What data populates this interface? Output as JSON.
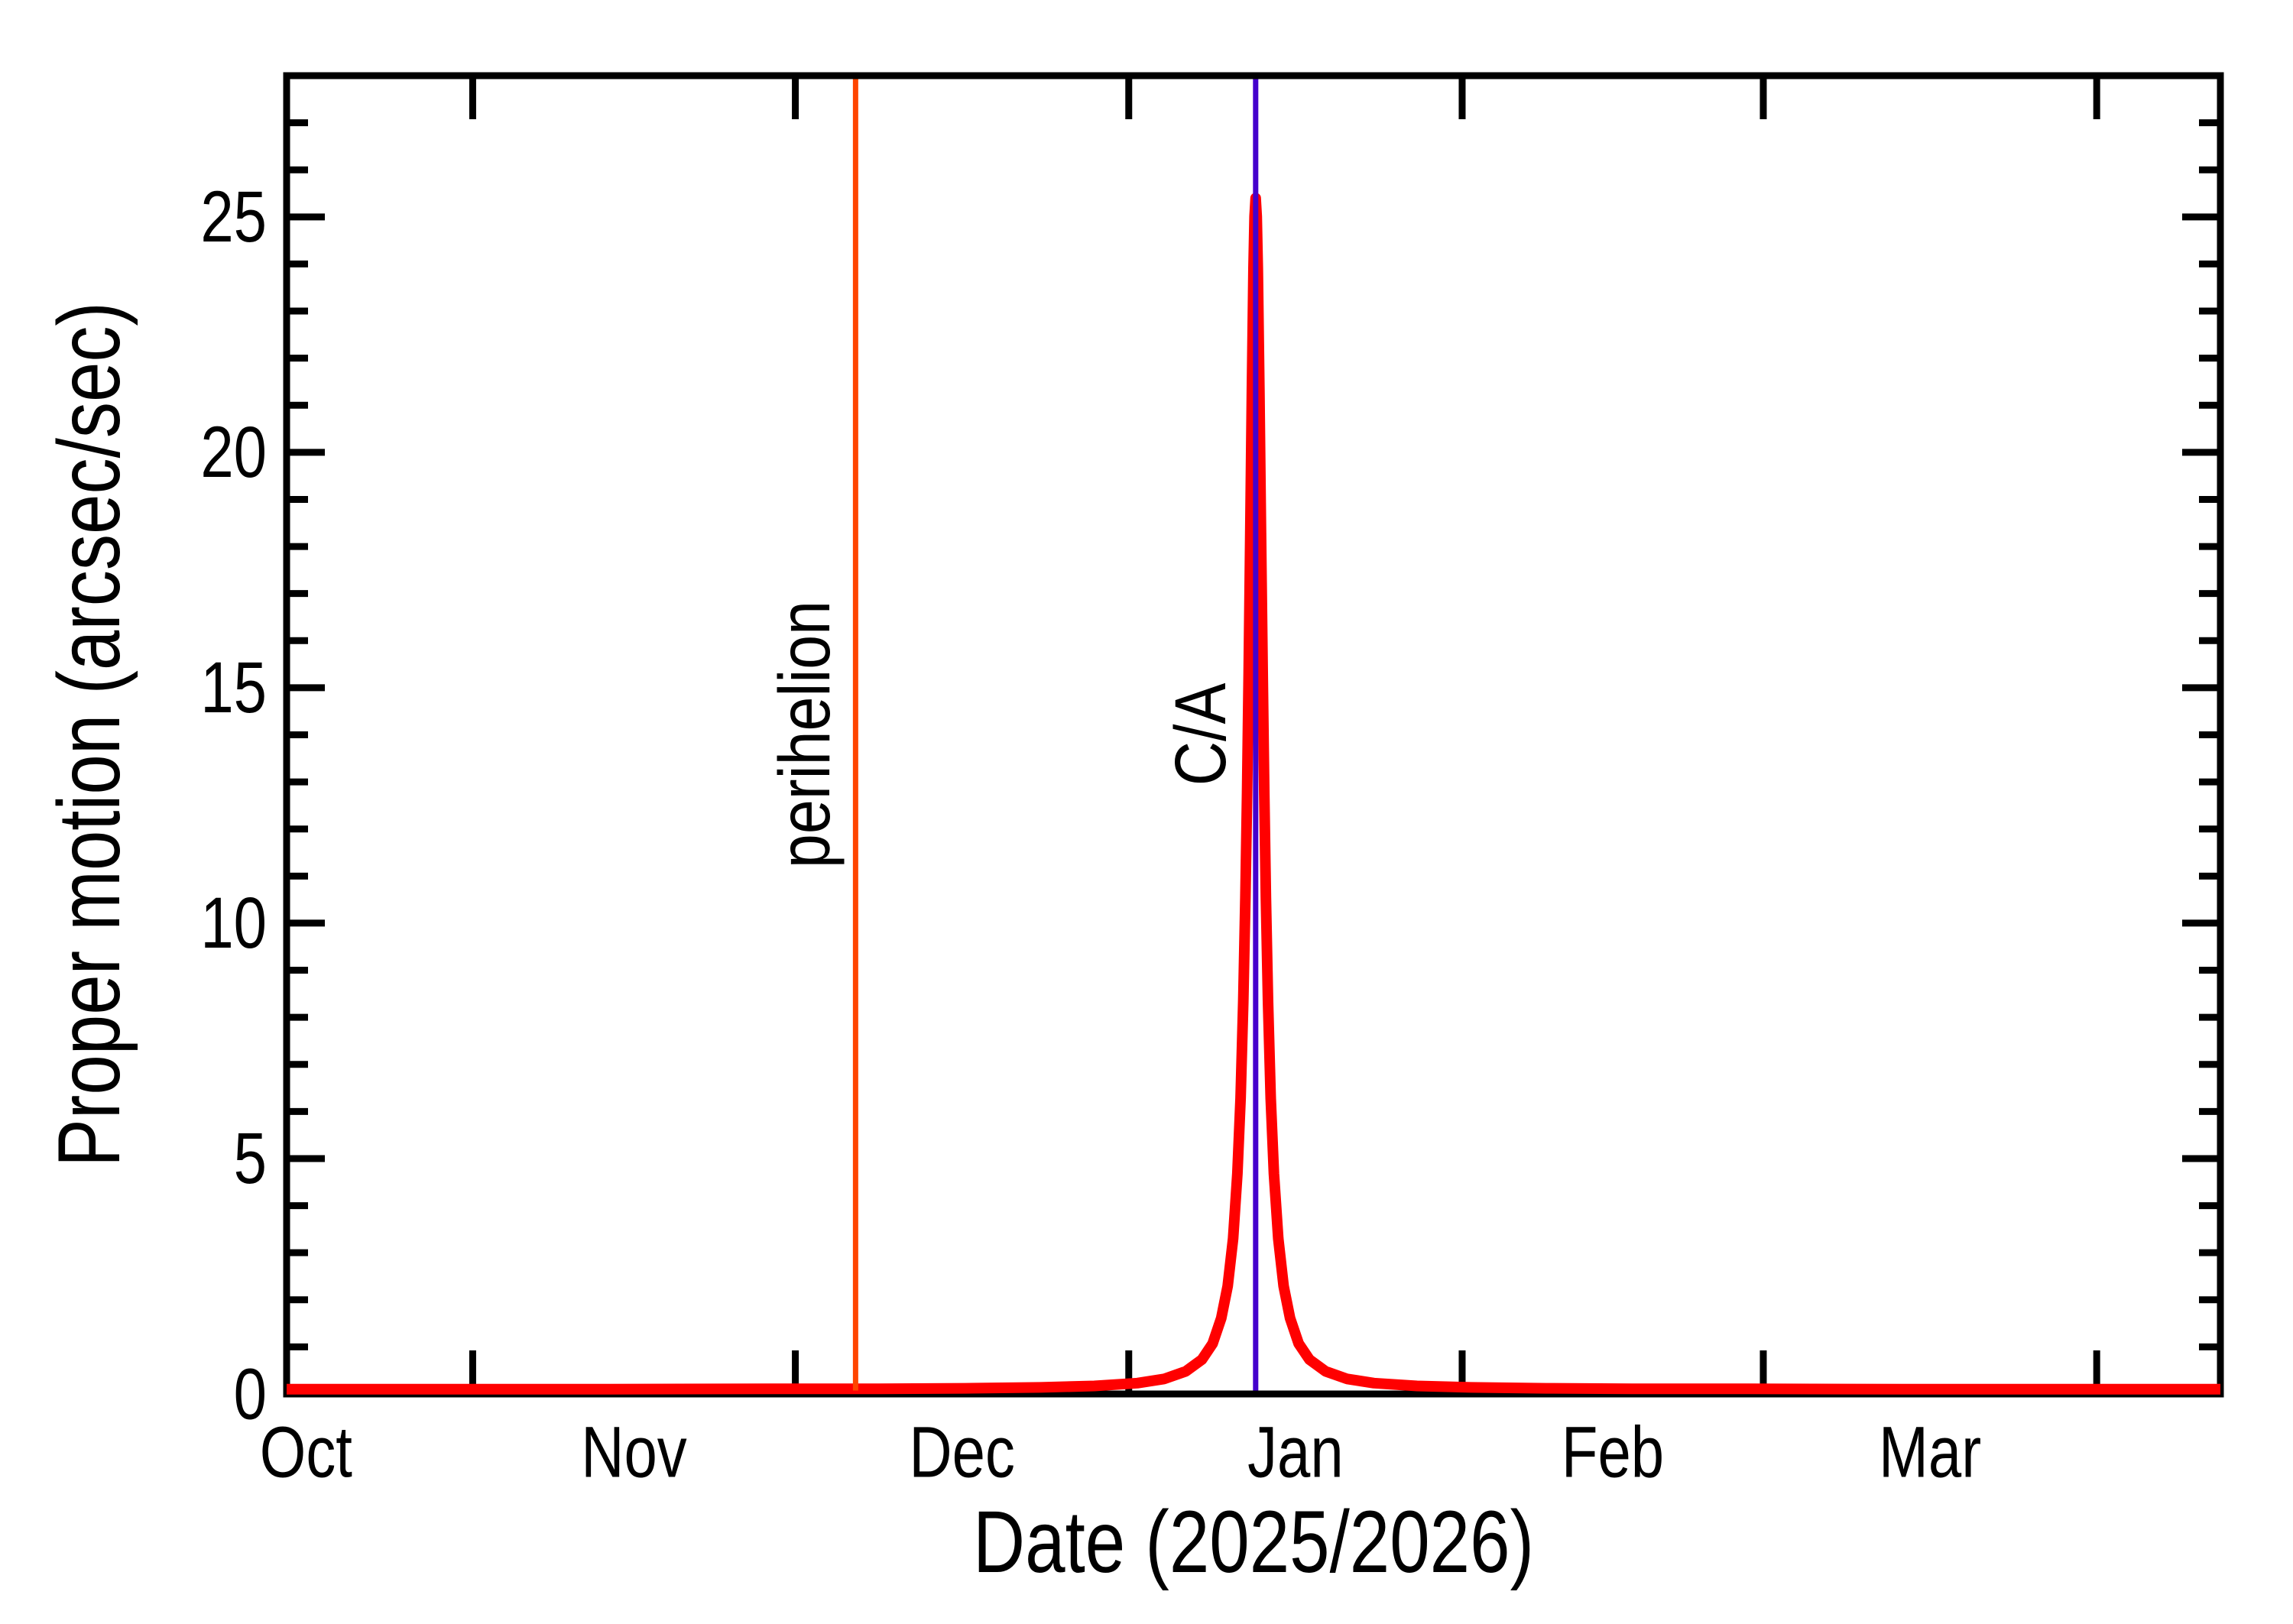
{
  "figure": {
    "xlabel": "Date (2025/2026)",
    "ylabel": "Proper motion (arcsec/sec)",
    "perihelion_label": "perihelion",
    "ca_label": "C/A"
  },
  "colors": {
    "curve": "#ff0000",
    "perihelion": "#ff4500",
    "close_approach": "#4400cc",
    "axis": "#000000",
    "background": "#ffffff"
  },
  "chart_data": {
    "type": "line",
    "title": "",
    "xlabel": "Date (2025/2026)",
    "ylabel": "Proper motion (arcsec/sec)",
    "x_unit": "days since 2025-10-01",
    "xlim_days": [
      13.7,
      193.5
    ],
    "ylim": [
      0,
      28
    ],
    "yticks_major": [
      0,
      5,
      10,
      15,
      20,
      25
    ],
    "ytick_minor_step": 1,
    "grid": false,
    "legend_position": "none",
    "months": [
      {
        "label": "Oct",
        "start_day": 0,
        "label_day": 15.5
      },
      {
        "label": "Nov",
        "start_day": 31,
        "label_day": 46
      },
      {
        "label": "Dec",
        "start_day": 61,
        "label_day": 76.5
      },
      {
        "label": "Jan",
        "start_day": 92,
        "label_day": 107.5
      },
      {
        "label": "Feb",
        "start_day": 123,
        "label_day": 137
      },
      {
        "label": "Mar",
        "start_day": 151,
        "label_day": 166.5
      },
      {
        "label": "",
        "start_day": 182,
        "label_day": null
      }
    ],
    "events": [
      {
        "name": "perihelion",
        "day": 66.6,
        "approx_date": "2025-12-07",
        "color": "#ff4500"
      },
      {
        "name": "C/A",
        "day": 103.8,
        "approx_date": "2026-01-13",
        "color": "#4400cc"
      }
    ],
    "series": [
      {
        "name": "proper motion",
        "color": "#ff0000",
        "baseline_value": 0.1,
        "peak": {
          "day": 103.8,
          "value": 25.4
        },
        "points_day_value": [
          [
            13.7,
            0.1
          ],
          [
            28.8,
            0.1
          ],
          [
            43.8,
            0.1
          ],
          [
            58.8,
            0.11
          ],
          [
            68.8,
            0.11
          ],
          [
            76.8,
            0.12
          ],
          [
            83.8,
            0.14
          ],
          [
            88.8,
            0.17
          ],
          [
            92.8,
            0.23
          ],
          [
            95.3,
            0.32
          ],
          [
            97.3,
            0.48
          ],
          [
            98.8,
            0.73
          ],
          [
            99.8,
            1.07
          ],
          [
            100.6,
            1.61
          ],
          [
            101.2,
            2.29
          ],
          [
            101.7,
            3.3
          ],
          [
            102.1,
            4.68
          ],
          [
            102.4,
            6.28
          ],
          [
            102.65,
            8.33
          ],
          [
            102.85,
            10.55
          ],
          [
            103.0,
            12.75
          ],
          [
            103.15,
            15.33
          ],
          [
            103.3,
            18.29
          ],
          [
            103.45,
            21.31
          ],
          [
            103.6,
            23.91
          ],
          [
            103.7,
            25.01
          ],
          [
            103.8,
            25.4
          ],
          [
            103.9,
            25.01
          ],
          [
            104.0,
            23.91
          ],
          [
            104.15,
            21.31
          ],
          [
            104.3,
            18.29
          ],
          [
            104.45,
            15.33
          ],
          [
            104.6,
            12.75
          ],
          [
            104.75,
            10.55
          ],
          [
            104.95,
            8.33
          ],
          [
            105.2,
            6.28
          ],
          [
            105.5,
            4.68
          ],
          [
            105.9,
            3.3
          ],
          [
            106.4,
            2.29
          ],
          [
            107.0,
            1.61
          ],
          [
            107.8,
            1.07
          ],
          [
            108.8,
            0.73
          ],
          [
            110.3,
            0.48
          ],
          [
            112.3,
            0.32
          ],
          [
            114.8,
            0.23
          ],
          [
            118.8,
            0.17
          ],
          [
            123.8,
            0.14
          ],
          [
            130.8,
            0.12
          ],
          [
            138.8,
            0.11
          ],
          [
            148.8,
            0.11
          ],
          [
            163.8,
            0.1
          ],
          [
            178.8,
            0.1
          ],
          [
            193.5,
            0.1
          ]
        ]
      }
    ]
  }
}
